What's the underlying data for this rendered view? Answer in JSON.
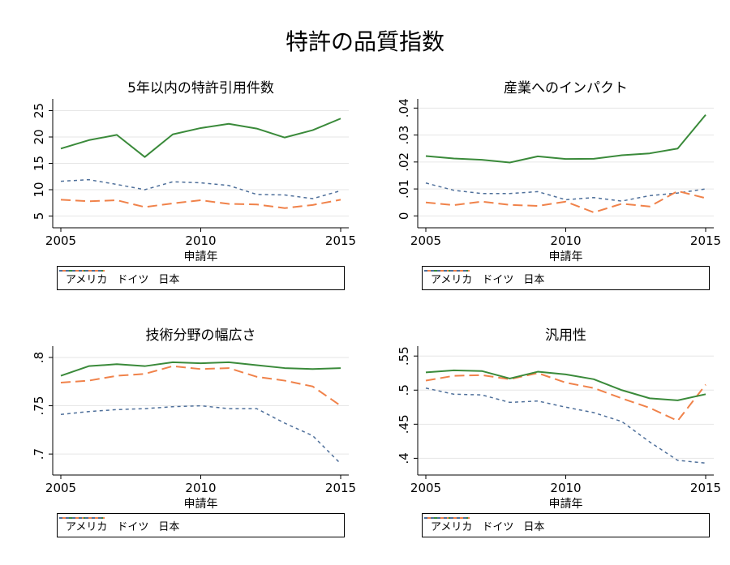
{
  "title": "特許の品質指数",
  "colors": {
    "usa": "#3a8a3a",
    "germany": "#f0824a",
    "japan": "#4e6f9a"
  },
  "chart_data": [
    {
      "type": "line",
      "title": "5年以内の特許引用件数",
      "xlabel": "申請年",
      "ylabel": "",
      "x": [
        2005,
        2006,
        2007,
        2008,
        2009,
        2010,
        2011,
        2012,
        2013,
        2014,
        2015
      ],
      "xticks": [
        "2005",
        "2010",
        "2015"
      ],
      "xlim": [
        2005,
        2015
      ],
      "ylim": [
        4,
        26
      ],
      "yticks": [
        5,
        10,
        15,
        20,
        25
      ],
      "ytick_labels": [
        "5",
        "10",
        "15",
        "20",
        "25"
      ],
      "grid": true,
      "legend_position": "bottom",
      "series": [
        {
          "name": "アメリカ",
          "values": [
            17.8,
            19.4,
            20.4,
            16.2,
            20.5,
            21.7,
            22.5,
            21.6,
            19.9,
            21.3,
            23.5
          ]
        },
        {
          "name": "ドイツ",
          "values": [
            8.1,
            7.8,
            8.0,
            6.7,
            7.4,
            8.0,
            7.3,
            7.2,
            6.5,
            7.1,
            8.1
          ]
        },
        {
          "name": "日本",
          "values": [
            11.6,
            11.9,
            11.0,
            10.0,
            11.5,
            11.3,
            10.8,
            9.1,
            9.0,
            8.3,
            9.8
          ]
        }
      ]
    },
    {
      "type": "line",
      "title": "産業へのインパクト",
      "xlabel": "申請年",
      "ylabel": "",
      "x": [
        2005,
        2006,
        2007,
        2008,
        2009,
        2010,
        2011,
        2012,
        2013,
        2014,
        2015
      ],
      "xticks": [
        "2005",
        "2010",
        "2015"
      ],
      "xlim": [
        2005,
        2015
      ],
      "ylim": [
        -0.002,
        0.041
      ],
      "yticks": [
        0,
        0.01,
        0.02,
        0.03,
        0.04
      ],
      "ytick_labels": [
        "0",
        ".01",
        ".02",
        ".03",
        ".04"
      ],
      "grid": true,
      "legend_position": "bottom",
      "series": [
        {
          "name": "アメリカ",
          "values": [
            0.0222,
            0.0213,
            0.0208,
            0.0198,
            0.0221,
            0.0211,
            0.0212,
            0.0225,
            0.0232,
            0.025,
            0.0375
          ]
        },
        {
          "name": "ドイツ",
          "values": [
            0.005,
            0.004,
            0.0053,
            0.0041,
            0.0037,
            0.0053,
            0.0013,
            0.0045,
            0.0035,
            0.0092,
            0.0066
          ]
        },
        {
          "name": "日本",
          "values": [
            0.0122,
            0.0095,
            0.0083,
            0.0083,
            0.009,
            0.006,
            0.0068,
            0.0055,
            0.0075,
            0.0085,
            0.01
          ]
        }
      ]
    },
    {
      "type": "line",
      "title": "技術分野の幅広さ",
      "xlabel": "申請年",
      "ylabel": "",
      "x": [
        2005,
        2006,
        2007,
        2008,
        2009,
        2010,
        2011,
        2012,
        2013,
        2014,
        2015
      ],
      "xticks": [
        "2005",
        "2010",
        "2015"
      ],
      "xlim": [
        2005,
        2015
      ],
      "ylim": [
        0.685,
        0.805
      ],
      "yticks": [
        0.7,
        0.75,
        0.8
      ],
      "ytick_labels": [
        ".7",
        ".75",
        ".8"
      ],
      "grid": true,
      "legend_position": "bottom",
      "series": [
        {
          "name": "アメリカ",
          "values": [
            0.781,
            0.791,
            0.793,
            0.791,
            0.795,
            0.794,
            0.795,
            0.792,
            0.789,
            0.788,
            0.789
          ]
        },
        {
          "name": "ドイツ",
          "values": [
            0.774,
            0.776,
            0.781,
            0.783,
            0.791,
            0.788,
            0.789,
            0.78,
            0.776,
            0.77,
            0.75
          ]
        },
        {
          "name": "日本",
          "values": [
            0.741,
            0.744,
            0.746,
            0.747,
            0.749,
            0.75,
            0.747,
            0.747,
            0.732,
            0.719,
            0.69
          ]
        }
      ]
    },
    {
      "type": "line",
      "title": "汎用性",
      "xlabel": "申請年",
      "ylabel": "",
      "x": [
        2005,
        2006,
        2007,
        2008,
        2009,
        2010,
        2011,
        2012,
        2013,
        2014,
        2015
      ],
      "xticks": [
        "2005",
        "2010",
        "2015"
      ],
      "xlim": [
        2005,
        2015
      ],
      "ylim": [
        0.385,
        0.555
      ],
      "yticks": [
        0.4,
        0.45,
        0.5,
        0.55
      ],
      "ytick_labels": [
        ".4",
        ".45",
        ".5",
        ".55"
      ],
      "grid": true,
      "legend_position": "bottom",
      "series": [
        {
          "name": "アメリカ",
          "values": [
            0.526,
            0.529,
            0.528,
            0.517,
            0.527,
            0.523,
            0.516,
            0.5,
            0.488,
            0.485,
            0.494
          ]
        },
        {
          "name": "ドイツ",
          "values": [
            0.514,
            0.521,
            0.522,
            0.516,
            0.525,
            0.511,
            0.503,
            0.488,
            0.474,
            0.455,
            0.508
          ]
        },
        {
          "name": "日本",
          "values": [
            0.503,
            0.494,
            0.493,
            0.482,
            0.484,
            0.475,
            0.467,
            0.454,
            0.424,
            0.397,
            0.393
          ]
        }
      ]
    }
  ]
}
